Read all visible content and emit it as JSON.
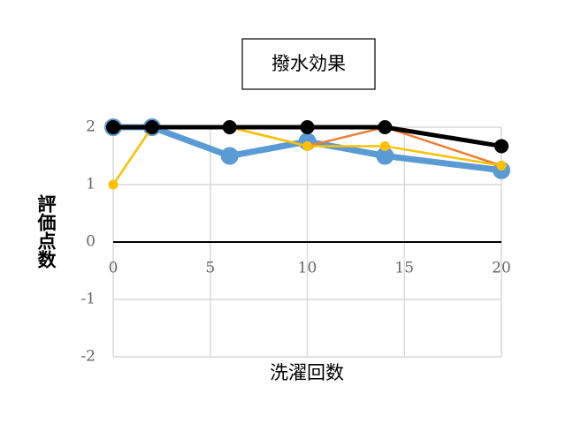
{
  "chart_data": {
    "type": "line",
    "title": "撥水効果",
    "x_label": "洗濯回数",
    "y_label": "評価点数",
    "x": [
      0,
      2,
      6,
      10,
      14,
      20
    ],
    "series": [
      {
        "color": "#5b9bd5",
        "line_width": 7,
        "values": [
          2,
          2,
          1.5,
          1.75,
          1.5,
          1.25
        ]
      },
      {
        "color": "#ed7d31",
        "line_width": 2.5,
        "values": [
          2,
          2,
          2,
          1.67,
          2,
          1.33
        ]
      },
      {
        "color": "#ffc000",
        "line_width": 2.5,
        "values": [
          1,
          2,
          2,
          1.67,
          1.67,
          1.33
        ]
      },
      {
        "color": "#000000",
        "line_width": 5,
        "values": [
          2,
          2,
          2,
          2,
          2,
          1.67
        ]
      }
    ],
    "xlim": [
      0,
      20
    ],
    "xticks": [
      0,
      5,
      10,
      15,
      20
    ],
    "ylim": [
      -2,
      2
    ],
    "yticks": [
      -2,
      -1,
      0,
      1,
      2
    ],
    "grid": true
  }
}
